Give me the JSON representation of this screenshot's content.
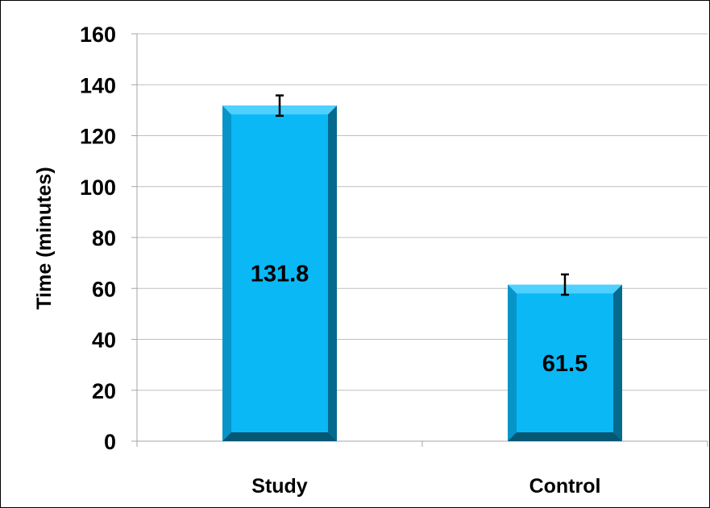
{
  "chart_data": {
    "type": "bar",
    "categories": [
      "Study",
      "Control"
    ],
    "values": [
      131.8,
      61.5
    ],
    "data_labels": [
      "131.8",
      "61.5"
    ],
    "error_bars": [
      4,
      4
    ],
    "title": "",
    "xlabel": "",
    "ylabel": "Time (minutes)",
    "ylim": [
      0,
      160
    ],
    "yticks": [
      0,
      20,
      40,
      60,
      80,
      100,
      120,
      140,
      160
    ],
    "grid": true,
    "legend": "none",
    "colors": {
      "bar_face": "#0ab8f5",
      "bar_side_left": "#0795c9",
      "bar_side_right": "#066a8f",
      "bar_bottom": "#055774",
      "gridline": "#bfbfbf",
      "axis": "#a6a6a6"
    }
  }
}
